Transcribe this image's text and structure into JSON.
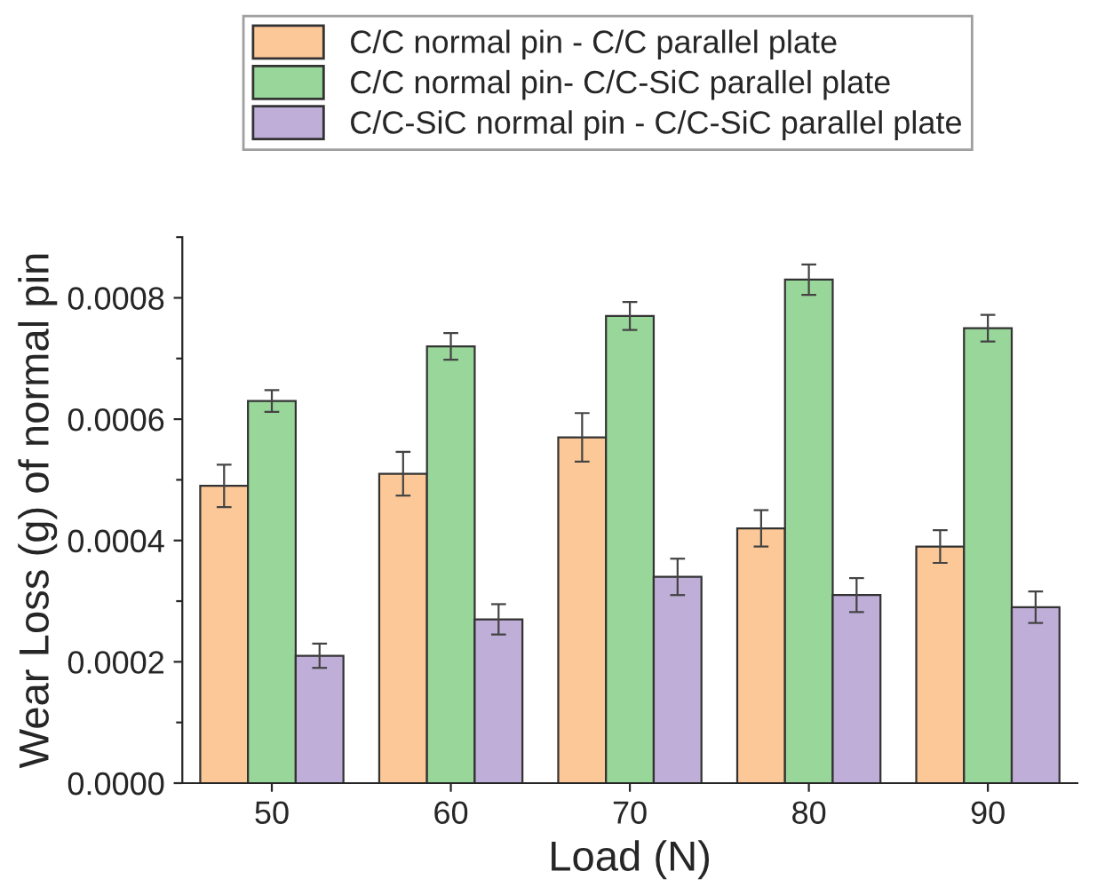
{
  "chart_data": {
    "type": "bar",
    "xlabel": "Load (N)",
    "ylabel": "Wear Loss (g) of normal pin",
    "categories": [
      "50",
      "60",
      "70",
      "80",
      "90"
    ],
    "series": [
      {
        "name": "C/C normal pin - C/C parallel plate",
        "color": "#fcc897",
        "values": [
          0.00049,
          0.00051,
          0.00057,
          0.00042,
          0.00039
        ],
        "errors": [
          3.5e-05,
          3.6e-05,
          4e-05,
          3e-05,
          2.7e-05
        ]
      },
      {
        "name": "C/C normal pin- C/C-SiC parallel plate",
        "color": "#98d69a",
        "values": [
          0.00063,
          0.00072,
          0.00077,
          0.00083,
          0.00075
        ],
        "errors": [
          1.8e-05,
          2.2e-05,
          2.3e-05,
          2.5e-05,
          2.2e-05
        ]
      },
      {
        "name": "C/C-SiC normal pin - C/C-SiC parallel plate",
        "color": "#bfaed8",
        "values": [
          0.00021,
          0.00027,
          0.00034,
          0.00031,
          0.00029
        ],
        "errors": [
          2e-05,
          2.5e-05,
          3e-05,
          2.8e-05,
          2.6e-05
        ]
      }
    ],
    "ylim": [
      0,
      0.0009
    ],
    "yticks": [
      {
        "value": 0,
        "label": "0.0000"
      },
      {
        "value": 0.0001,
        "label": null
      },
      {
        "value": 0.0002,
        "label": "0.0002"
      },
      {
        "value": 0.0003,
        "label": null
      },
      {
        "value": 0.0004,
        "label": "0.0004"
      },
      {
        "value": 0.0005,
        "label": null
      },
      {
        "value": 0.0006,
        "label": "0.0006"
      },
      {
        "value": 0.0007,
        "label": null
      },
      {
        "value": 0.0008,
        "label": "0.0008"
      },
      {
        "value": 0.0009,
        "label": null
      }
    ],
    "legend": "top",
    "grid": false
  }
}
